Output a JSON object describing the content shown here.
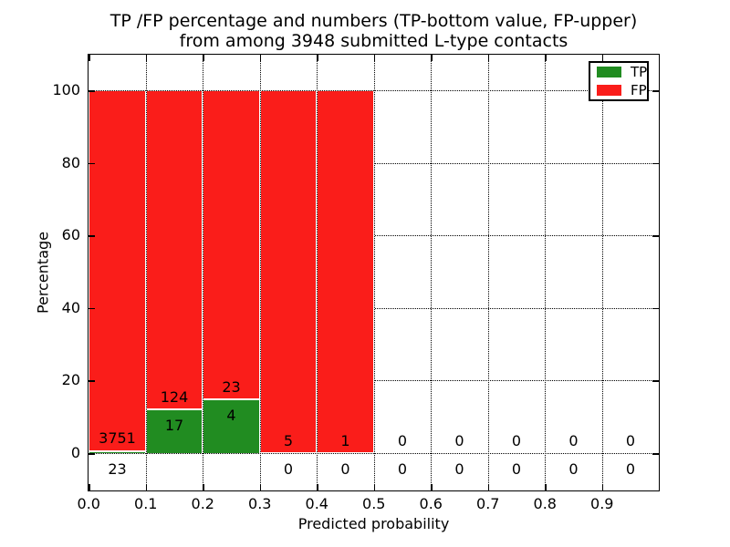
{
  "figure": {
    "background": "#ffffff",
    "title_line1": "TP /FP percentage and numbers (TP-bottom value, FP-upper)",
    "title_line2": "from among 3948 submitted L-type contacts"
  },
  "colors": {
    "tp_green": "#218c21",
    "fp_red": "#fa1d1a",
    "grid": "#000000",
    "text": "#000000",
    "frame": "#000000",
    "background": "#ffffff"
  },
  "chart_data": {
    "type": "bar",
    "stacked": true,
    "title": "TP /FP percentage and numbers (TP-bottom value, FP-upper)\nfrom among 3948 submitted L-type contacts",
    "title_line1": "TP /FP percentage and numbers (TP-bottom value, FP-upper)",
    "title_line2": "from among 3948 submitted L-type contacts",
    "xlabel": "Predicted probability",
    "ylabel": "Percentage",
    "total_contacts": 3948,
    "x_tick_labels": [
      "0.0",
      "0.1",
      "0.2",
      "0.3",
      "0.4",
      "0.5",
      "0.6",
      "0.7",
      "0.8",
      "0.9"
    ],
    "y_tick_labels": [
      "0",
      "20",
      "40",
      "60",
      "80",
      "100"
    ],
    "y_tick_values": [
      0,
      20,
      40,
      60,
      80,
      100
    ],
    "xlim": [
      0.0,
      1.0
    ],
    "ylim": [
      -10.3,
      109.8
    ],
    "grid": "dotted",
    "bin_width": 0.1,
    "categories": [
      "0.0-0.1",
      "0.1-0.2",
      "0.2-0.3",
      "0.3-0.4",
      "0.4-0.5",
      "0.5-0.6",
      "0.6-0.7",
      "0.7-0.8",
      "0.8-0.9",
      "0.9-1.0"
    ],
    "series": [
      {
        "name": "TP",
        "color": "#218c21",
        "counts": [
          23,
          17,
          4,
          0,
          0,
          0,
          0,
          0,
          0,
          0
        ],
        "pct": [
          0.61,
          12.06,
          14.81,
          0,
          0,
          0,
          0,
          0,
          0,
          0
        ]
      },
      {
        "name": "FP",
        "color": "#fa1d1a",
        "counts": [
          3751,
          124,
          23,
          5,
          1,
          0,
          0,
          0,
          0,
          0
        ],
        "pct": [
          99.39,
          87.94,
          85.19,
          100,
          100,
          0,
          0,
          0,
          0,
          0
        ]
      }
    ],
    "legend": {
      "position": "upper right",
      "entries": [
        {
          "label": "TP",
          "color": "#218c21"
        },
        {
          "label": "FP",
          "color": "#fa1d1a"
        }
      ]
    }
  }
}
